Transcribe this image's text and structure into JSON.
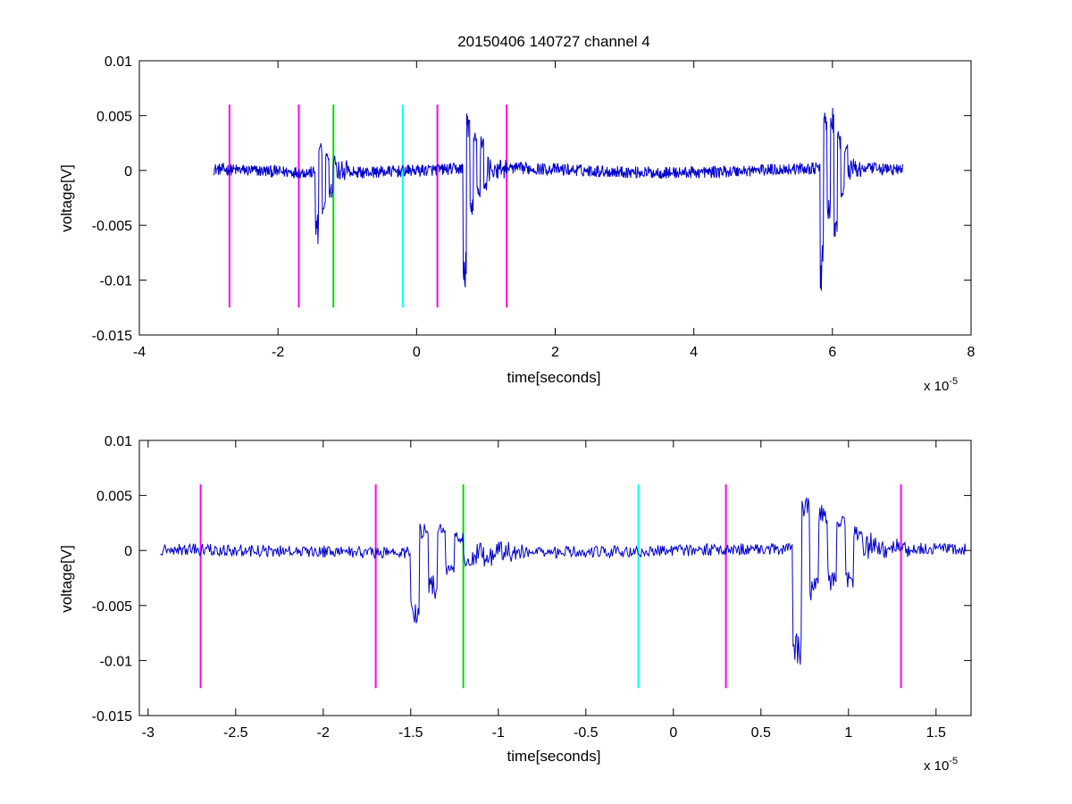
{
  "figure": {
    "title": "20150406 140727 channel 4"
  },
  "chart_data": [
    {
      "type": "line",
      "title": "20150406 140727 channel 4",
      "xlabel": "time[seconds]",
      "ylabel": "voltage[V]",
      "x_multiplier": "x 10",
      "x_exponent": "-5",
      "xlim": [
        -4,
        8
      ],
      "ylim": [
        -0.015,
        0.01
      ],
      "xticks": [
        "-4",
        "-2",
        "0",
        "2",
        "4",
        "6",
        "8"
      ],
      "yticks": [
        "-0.015",
        "-0.01",
        "-0.005",
        "0",
        "0.005",
        "0.01"
      ],
      "grid": false,
      "series": [
        {
          "color": "#0000cc",
          "x_range": [
            -2.93,
            7.02
          ],
          "bursts": [
            {
              "t": -1.38,
              "values": [
                -0.0066,
                0.0025,
                -0.0035,
                0.002,
                -0.002,
                0.0015
              ]
            },
            {
              "t": 0.75,
              "values": [
                -0.0113,
                0.005,
                -0.0045,
                0.0035,
                -0.003,
                0.0025,
                -0.002
              ]
            },
            {
              "t": 5.9,
              "values": [
                -0.011,
                0.0053,
                -0.0048,
                0.0053,
                -0.0068,
                0.0035,
                -0.0025,
                0.002
              ]
            }
          ]
        }
      ],
      "markers": [
        {
          "x": -2.7,
          "color": "#ff00ff"
        },
        {
          "x": -1.7,
          "color": "#ff00ff"
        },
        {
          "x": -1.2,
          "color": "#00dd00"
        },
        {
          "x": -0.2,
          "color": "#00ffff"
        },
        {
          "x": 0.3,
          "color": "#ff00ff"
        },
        {
          "x": 1.3,
          "color": "#ff00ff"
        }
      ],
      "marker_range": [
        -0.0125,
        0.006
      ]
    },
    {
      "type": "line",
      "xlabel": "time[seconds]",
      "ylabel": "voltage[V]",
      "x_multiplier": "x 10",
      "x_exponent": "-5",
      "xlim": [
        -3.05,
        1.7
      ],
      "ylim": [
        -0.015,
        0.01
      ],
      "xticks": [
        "-3",
        "-2.5",
        "-2",
        "-1.5",
        "-1",
        "-0.5",
        "0",
        "0.5",
        "1",
        "1.5"
      ],
      "yticks": [
        "-0.015",
        "-0.01",
        "-0.005",
        "0",
        "0.005",
        "0.01"
      ],
      "grid": false,
      "series": [
        {
          "color": "#0000cc",
          "x_range": [
            -2.93,
            1.67
          ],
          "bursts": [
            {
              "t": -1.42,
              "values": [
                -0.0066,
                0.0028,
                -0.004,
                0.0025,
                -0.002,
                0.0015,
                -0.001
              ]
            },
            {
              "t": 0.76,
              "values": [
                -0.0113,
                0.005,
                -0.0045,
                0.004,
                -0.0035,
                0.003,
                -0.0035,
                0.002
              ]
            }
          ]
        }
      ],
      "markers": [
        {
          "x": -2.7,
          "color": "#ff00ff"
        },
        {
          "x": -1.7,
          "color": "#ff00ff"
        },
        {
          "x": -1.2,
          "color": "#00dd00"
        },
        {
          "x": -0.2,
          "color": "#00ffff"
        },
        {
          "x": 0.3,
          "color": "#ff00ff"
        },
        {
          "x": 1.3,
          "color": "#ff00ff"
        }
      ],
      "marker_range": [
        -0.0125,
        0.006
      ]
    }
  ]
}
